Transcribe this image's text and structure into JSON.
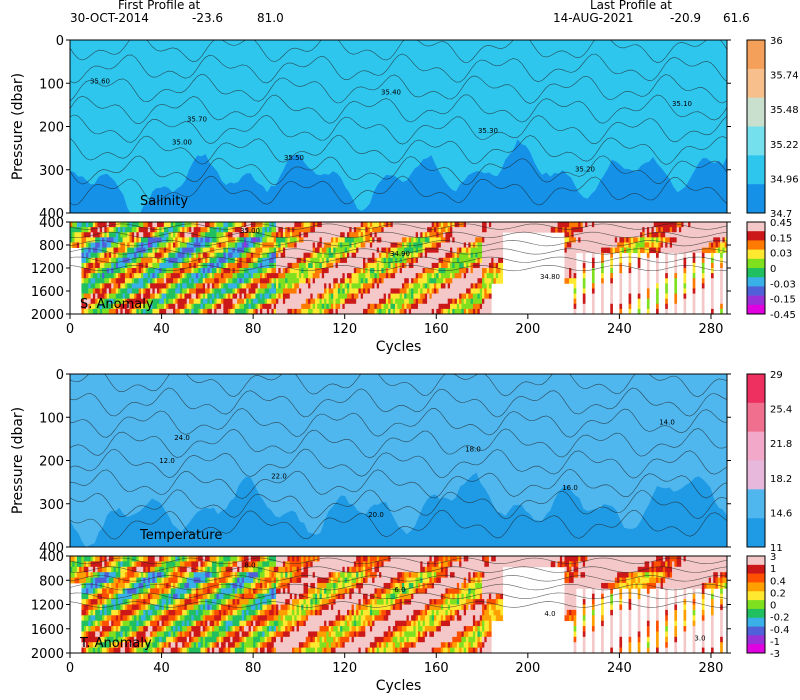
{
  "header": {
    "first_label": "First Profile at",
    "first_date": "30-OCT-2014",
    "first_lat": "-23.6",
    "first_lon": "81.0",
    "last_label": "Last Profile at",
    "last_date": "14-AUG-2021",
    "last_lat": "-20.9",
    "last_lon": "61.6"
  },
  "chart_data": [
    {
      "type": "heatmap",
      "title": "Salinity",
      "ylabel": "Pressure (dbar)",
      "xlabel": "",
      "xlim": [
        0,
        287
      ],
      "ylim": [
        400,
        0
      ],
      "yticks": [
        "0",
        "100",
        "200",
        "300",
        "400"
      ],
      "xticks": [],
      "colorbar": {
        "labels": [
          "36",
          "35.74",
          "35.48",
          "35.22",
          "34.96",
          "34.7"
        ],
        "colors": [
          "#f5a05a",
          "#f7bf8b",
          "#c9e0cf",
          "#74e0ee",
          "#2fc6ee",
          "#1591e8"
        ]
      },
      "contour_labels": [
        "35.60",
        "35.70",
        "35.50",
        "35.40",
        "35.30",
        "35.20",
        "35.10",
        "35.00"
      ]
    },
    {
      "type": "heatmap",
      "title": "S. Anomaly",
      "ylabel": "",
      "xlabel": "Cycles",
      "xlim": [
        0,
        287
      ],
      "ylim": [
        2000,
        400
      ],
      "yticks": [
        "400",
        "800",
        "1200",
        "1600",
        "2000"
      ],
      "xticks": [
        "0",
        "40",
        "80",
        "120",
        "160",
        "200",
        "240",
        "280"
      ],
      "colorbar": {
        "labels": [
          "0.45",
          "0.15",
          "0.03",
          "0",
          "-0.03",
          "-0.15",
          "-0.45"
        ],
        "colors": [
          "#f4c8c8",
          "#cc1818",
          "#ff7a00",
          "#ffe830",
          "#7fe020",
          "#20c060",
          "#3ab0e8",
          "#5060d8",
          "#9a30d8",
          "#e000e0"
        ]
      },
      "contour_labels": [
        "35.00",
        "34.90",
        "34.80"
      ]
    },
    {
      "type": "heatmap",
      "title": "Temperature",
      "ylabel": "Pressure (dbar)",
      "xlabel": "",
      "xlim": [
        0,
        287
      ],
      "ylim": [
        400,
        0
      ],
      "yticks": [
        "0",
        "100",
        "200",
        "300",
        "400"
      ],
      "xticks": [],
      "colorbar": {
        "labels": [
          "29",
          "25.4",
          "21.8",
          "18.2",
          "14.6",
          "11"
        ],
        "colors": [
          "#ee3060",
          "#f06f8f",
          "#f2a8c8",
          "#e7b8dc",
          "#4fb7ee",
          "#1f9be6"
        ]
      },
      "contour_labels": [
        "24.0",
        "22.0",
        "20.0",
        "18.0",
        "16.0",
        "14.0",
        "12.0"
      ]
    },
    {
      "type": "heatmap",
      "title": "T. Anomaly",
      "ylabel": "",
      "xlabel": "Cycles",
      "xlim": [
        0,
        287
      ],
      "ylim": [
        2000,
        400
      ],
      "yticks": [
        "400",
        "800",
        "1200",
        "1600",
        "2000"
      ],
      "xticks": [
        "0",
        "40",
        "80",
        "120",
        "160",
        "200",
        "240",
        "280"
      ],
      "colorbar": {
        "labels": [
          "3",
          "1",
          "0.4",
          "0.2",
          "0",
          "-0.2",
          "-0.4",
          "-1",
          "-3"
        ],
        "colors": [
          "#f4c8c8",
          "#cc1818",
          "#ff5000",
          "#ffa000",
          "#ffe830",
          "#7fe020",
          "#20c060",
          "#3ab0e8",
          "#5060d8",
          "#9a30d8",
          "#e000e0"
        ]
      },
      "contour_labels": [
        "8.0",
        "6.0",
        "4.0",
        "3.0"
      ]
    }
  ]
}
